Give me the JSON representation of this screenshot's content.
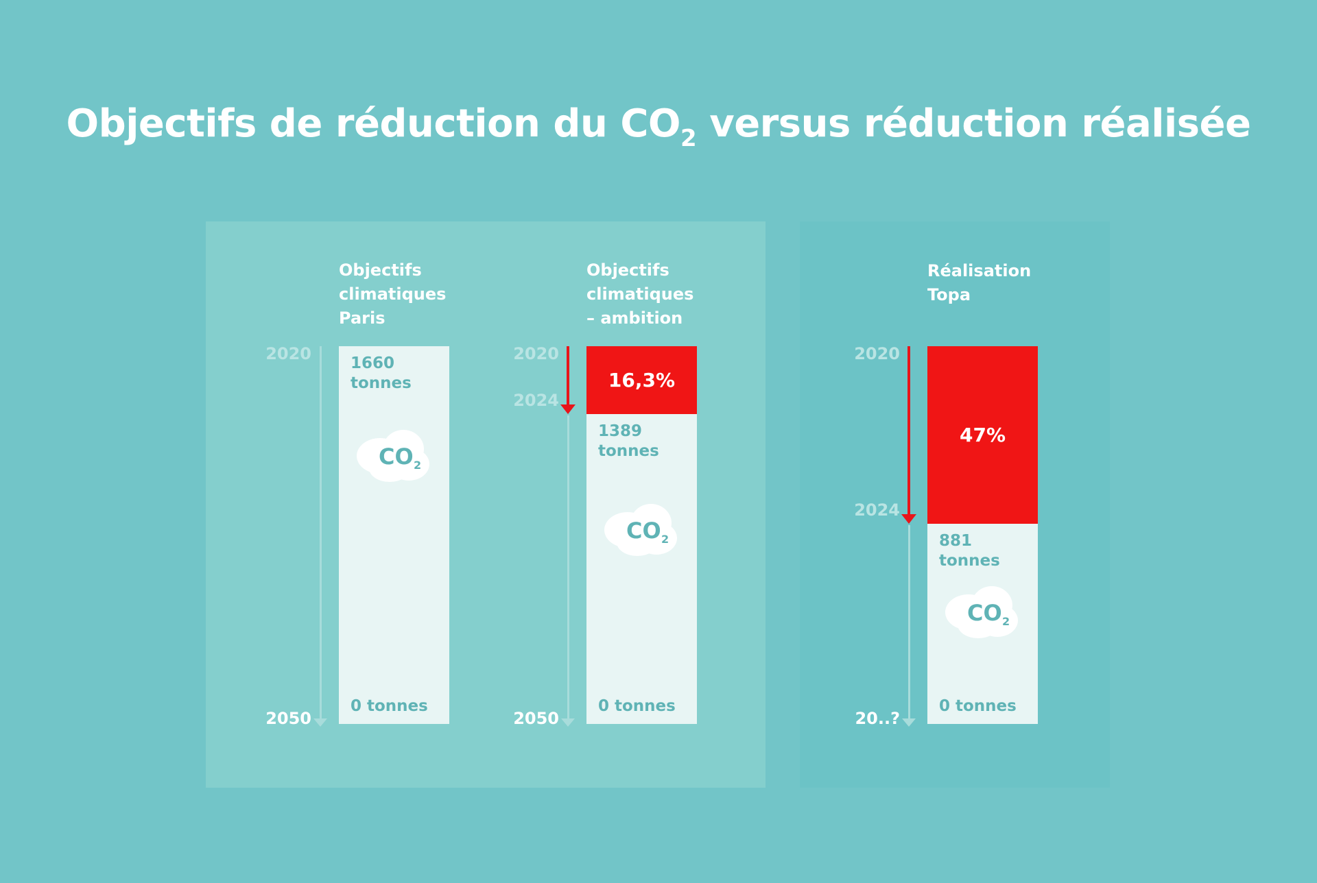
{
  "title": {
    "main": "Objectifs de réduction du CO",
    "subscript": "2",
    "rest": " versus réduction réalisée"
  },
  "colors": {
    "background": "#72c5c8",
    "reduction": "#f01515",
    "bar": "#e8f5f4",
    "text_on_bar": "#5fb3b5"
  },
  "icon": "co2-cloud-icon",
  "chart_data": {
    "type": "bar",
    "subtype": "stacked-vertical",
    "unit": "tonnes CO2",
    "columns": [
      {
        "label_lines": [
          "Objectifs",
          "climatiques",
          "Paris"
        ],
        "year_start": "2020",
        "year_mid": "",
        "year_end": "2050",
        "start_value": 1660,
        "reduction_pct": 0,
        "reduction_label": "",
        "remaining_value": 1660,
        "remaining_label": "1660\ntonnes",
        "end_label": "0 tonnes"
      },
      {
        "label_lines": [
          "Objectifs",
          "climatiques",
          "– ambition"
        ],
        "year_start": "2020",
        "year_mid": "2024",
        "year_end": "2050",
        "start_value": 1660,
        "reduction_pct": 16.3,
        "reduction_label": "16,3%",
        "remaining_value": 1389,
        "remaining_label": "1389\ntonnes",
        "end_label": "0 tonnes"
      },
      {
        "label_lines": [
          "Réalisation",
          "Topa"
        ],
        "year_start": "2020",
        "year_mid": "2024",
        "year_end": "20..?",
        "start_value": 1660,
        "reduction_pct": 47,
        "reduction_label": "47%",
        "remaining_value": 881,
        "remaining_label": "881 tonnes",
        "end_label": "0 tonnes"
      }
    ]
  }
}
